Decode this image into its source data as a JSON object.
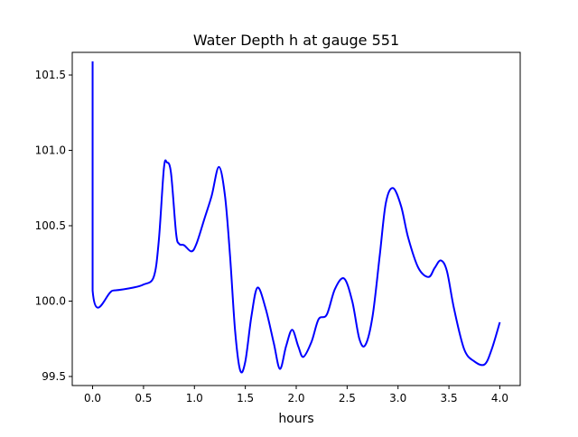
{
  "chart_data": {
    "type": "line",
    "title": "Water Depth h at gauge 551",
    "xlabel": "hours",
    "ylabel": "",
    "xlim": [
      -0.2,
      4.2
    ],
    "ylim": [
      99.44,
      101.65
    ],
    "grid": false,
    "xticks": [
      0.0,
      0.5,
      1.0,
      1.5,
      2.0,
      2.5,
      3.0,
      3.5,
      4.0
    ],
    "xtick_labels": [
      "0.0",
      "0.5",
      "1.0",
      "1.5",
      "2.0",
      "2.5",
      "3.0",
      "3.5",
      "4.0"
    ],
    "yticks": [
      99.5,
      100.0,
      100.5,
      101.0,
      101.5
    ],
    "ytick_labels": [
      "99.5",
      "100.0",
      "100.5",
      "101.0",
      "101.5"
    ],
    "series": [
      {
        "name": "h",
        "color": "#0000ff",
        "x": [
          0,
          0,
          0.2,
          0.4,
          0.5,
          0.6,
          0.65,
          0.7,
          0.73,
          0.77,
          0.82,
          0.85,
          0.9,
          0.97,
          1.02,
          1.1,
          1.17,
          1.24,
          1.3,
          1.35,
          1.4,
          1.45,
          1.5,
          1.56,
          1.62,
          1.7,
          1.78,
          1.84,
          1.9,
          1.96,
          2.02,
          2.07,
          2.15,
          2.22,
          2.3,
          2.38,
          2.47,
          2.55,
          2.62,
          2.68,
          2.75,
          2.82,
          2.88,
          2.95,
          3.03,
          3.1,
          3.2,
          3.3,
          3.36,
          3.42,
          3.48,
          3.55,
          3.65,
          3.75,
          3.85,
          3.92,
          4.0
        ],
        "y": [
          101.59,
          100.07,
          100.07,
          100.09,
          100.11,
          100.16,
          100.4,
          100.88,
          100.92,
          100.85,
          100.45,
          100.38,
          100.37,
          100.33,
          100.38,
          100.55,
          100.7,
          100.89,
          100.7,
          100.3,
          99.8,
          99.54,
          99.6,
          99.9,
          100.09,
          99.95,
          99.72,
          99.55,
          99.7,
          99.81,
          99.7,
          99.63,
          99.73,
          99.88,
          99.91,
          100.08,
          100.15,
          100.0,
          99.75,
          99.71,
          99.9,
          100.3,
          100.65,
          100.75,
          100.63,
          100.42,
          100.22,
          100.16,
          100.22,
          100.27,
          100.2,
          99.95,
          99.68,
          99.6,
          99.58,
          99.68,
          99.86
        ]
      }
    ]
  }
}
